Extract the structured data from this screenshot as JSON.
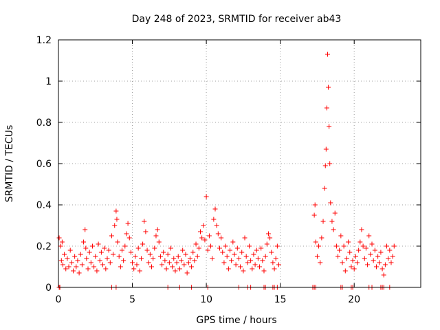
{
  "chart_data": {
    "type": "scatter",
    "title": "Day 248 of 2023, SRMTID for receiver ab43",
    "xlabel": "GPS time / hours",
    "ylabel": "SRMTID / TECUs",
    "xlim": [
      0,
      24.5
    ],
    "ylim": [
      0,
      1.2
    ],
    "x_ticks": [
      0,
      5,
      10,
      15,
      20
    ],
    "x_tick_labels": [
      "0",
      "5",
      "10",
      "15",
      "20"
    ],
    "y_ticks": [
      0,
      0.2,
      0.4,
      0.6,
      0.8,
      1.0,
      1.2
    ],
    "y_tick_labels": [
      "0",
      "0.2",
      "0.4",
      "0.6",
      "0.8",
      "1",
      "1.2"
    ],
    "grid": true,
    "marker": "plus",
    "series": [
      {
        "name": "SRMTID",
        "color": "#ff0000",
        "x": [
          0.05,
          0.15,
          0.2,
          0.25,
          0.3,
          0.4,
          0.5,
          0.6,
          0.7,
          0.8,
          0.9,
          1.0,
          1.1,
          1.2,
          1.3,
          1.4,
          1.5,
          1.6,
          1.7,
          1.8,
          1.85,
          1.9,
          2.0,
          2.1,
          2.2,
          2.3,
          2.4,
          2.5,
          2.6,
          2.7,
          2.8,
          2.9,
          3.0,
          3.1,
          3.2,
          3.3,
          3.4,
          3.5,
          3.6,
          3.7,
          3.8,
          3.9,
          3.95,
          4.0,
          4.1,
          4.2,
          4.3,
          4.4,
          4.5,
          4.6,
          4.7,
          4.8,
          4.9,
          5.0,
          5.1,
          5.2,
          5.3,
          5.4,
          5.5,
          5.6,
          5.7,
          5.8,
          5.9,
          6.0,
          6.1,
          6.2,
          6.3,
          6.4,
          6.5,
          6.6,
          6.7,
          6.8,
          6.9,
          7.0,
          7.1,
          7.2,
          7.3,
          7.4,
          7.5,
          7.6,
          7.7,
          7.8,
          7.9,
          8.0,
          8.1,
          8.2,
          8.3,
          8.4,
          8.5,
          8.6,
          8.7,
          8.8,
          8.9,
          9.0,
          9.1,
          9.2,
          9.3,
          9.4,
          9.5,
          9.6,
          9.7,
          9.8,
          9.9,
          10.0,
          10.1,
          10.2,
          10.3,
          10.4,
          10.5,
          10.6,
          10.7,
          10.8,
          10.9,
          11.0,
          11.1,
          11.2,
          11.3,
          11.4,
          11.5,
          11.6,
          11.7,
          11.8,
          11.9,
          12.0,
          12.1,
          12.2,
          12.3,
          12.4,
          12.5,
          12.6,
          12.7,
          12.8,
          12.9,
          13.0,
          13.1,
          13.2,
          13.3,
          13.4,
          13.5,
          13.6,
          13.7,
          13.8,
          13.9,
          14.0,
          14.1,
          14.2,
          14.3,
          14.4,
          14.5,
          14.6,
          14.7,
          14.8,
          14.9,
          17.3,
          17.35,
          17.4,
          17.5,
          17.6,
          17.7,
          17.8,
          17.9,
          18.0,
          18.05,
          18.1,
          18.15,
          18.2,
          18.25,
          18.3,
          18.35,
          18.4,
          18.5,
          18.6,
          18.7,
          18.8,
          18.9,
          19.0,
          19.1,
          19.2,
          19.3,
          19.4,
          19.5,
          19.6,
          19.7,
          19.8,
          19.9,
          20.0,
          20.1,
          20.2,
          20.3,
          20.4,
          20.5,
          20.6,
          20.7,
          20.8,
          20.9,
          21.0,
          21.1,
          21.2,
          21.3,
          21.4,
          21.5,
          21.6,
          21.7,
          21.8,
          21.9,
          22.0,
          22.1,
          22.2,
          22.3,
          22.4,
          22.5,
          22.6,
          22.7
        ],
        "y": [
          0.24,
          0.2,
          0.13,
          0.22,
          0.11,
          0.16,
          0.09,
          0.14,
          0.1,
          0.18,
          0.12,
          0.08,
          0.15,
          0.1,
          0.13,
          0.07,
          0.16,
          0.11,
          0.22,
          0.28,
          0.19,
          0.14,
          0.09,
          0.17,
          0.12,
          0.2,
          0.1,
          0.15,
          0.08,
          0.21,
          0.13,
          0.17,
          0.11,
          0.19,
          0.09,
          0.14,
          0.18,
          0.12,
          0.25,
          0.16,
          0.3,
          0.37,
          0.33,
          0.22,
          0.15,
          0.1,
          0.18,
          0.13,
          0.2,
          0.26,
          0.31,
          0.24,
          0.17,
          0.12,
          0.09,
          0.15,
          0.11,
          0.19,
          0.08,
          0.14,
          0.21,
          0.32,
          0.27,
          0.18,
          0.12,
          0.16,
          0.1,
          0.14,
          0.19,
          0.25,
          0.28,
          0.22,
          0.15,
          0.11,
          0.17,
          0.13,
          0.09,
          0.16,
          0.12,
          0.19,
          0.1,
          0.14,
          0.08,
          0.12,
          0.15,
          0.09,
          0.13,
          0.18,
          0.11,
          0.16,
          0.07,
          0.12,
          0.14,
          0.1,
          0.17,
          0.13,
          0.21,
          0.15,
          0.19,
          0.27,
          0.24,
          0.3,
          0.23,
          0.44,
          0.18,
          0.25,
          0.2,
          0.14,
          0.33,
          0.38,
          0.3,
          0.26,
          0.19,
          0.24,
          0.17,
          0.12,
          0.2,
          0.15,
          0.09,
          0.18,
          0.13,
          0.22,
          0.16,
          0.11,
          0.19,
          0.14,
          0.1,
          0.17,
          0.08,
          0.24,
          0.15,
          0.12,
          0.2,
          0.13,
          0.09,
          0.16,
          0.11,
          0.18,
          0.14,
          0.1,
          0.19,
          0.13,
          0.08,
          0.15,
          0.21,
          0.26,
          0.24,
          0.17,
          0.12,
          0.09,
          0.14,
          0.2,
          0.11,
          0.35,
          0.4,
          0.22,
          0.15,
          0.2,
          0.12,
          0.24,
          0.32,
          0.48,
          0.59,
          0.67,
          0.87,
          1.13,
          0.97,
          0.78,
          0.6,
          0.41,
          0.32,
          0.28,
          0.36,
          0.2,
          0.15,
          0.18,
          0.25,
          0.12,
          0.2,
          0.08,
          0.14,
          0.22,
          0.17,
          0.1,
          0.13,
          0.09,
          0.15,
          0.12,
          0.18,
          0.22,
          0.28,
          0.2,
          0.14,
          0.19,
          0.11,
          0.25,
          0.16,
          0.21,
          0.13,
          0.18,
          0.1,
          0.15,
          0.12,
          0.17,
          0.09,
          0.06,
          0.11,
          0.2,
          0.14,
          0.18,
          0.12,
          0.15,
          0.2
        ],
        "zero_x": [
          0.05,
          0.1,
          3.6,
          3.9,
          7.4,
          8.2,
          9.0,
          10.1,
          12.2,
          12.8,
          13.0,
          13.9,
          14.0,
          14.5,
          14.6,
          14.8,
          17.2,
          17.3,
          17.4,
          19.1,
          19.2,
          19.8,
          19.9,
          21.0,
          21.2,
          21.8,
          21.9,
          22.0,
          22.4
        ]
      }
    ]
  }
}
